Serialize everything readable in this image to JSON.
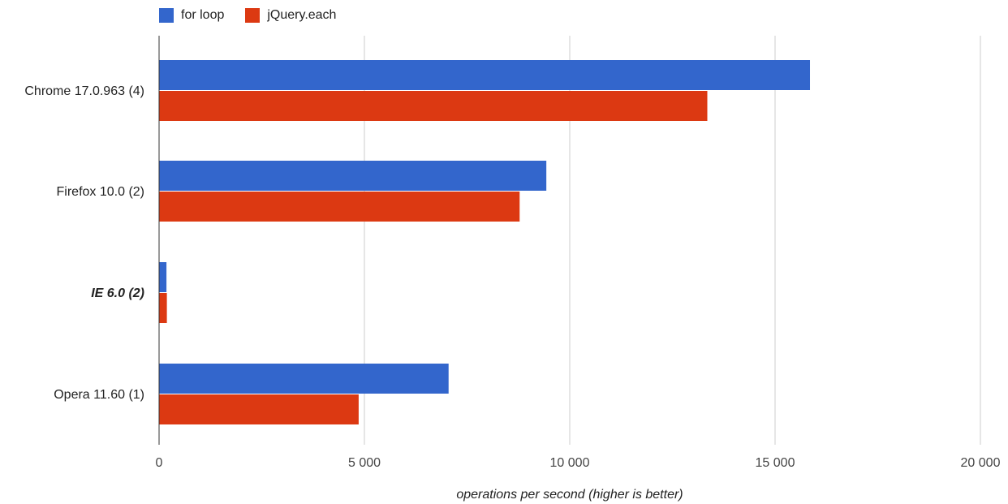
{
  "chart_data": {
    "type": "bar",
    "orientation": "horizontal",
    "categories": [
      "Chrome 17.0.963 (4)",
      "Firefox 10.0 (2)",
      "IE 6.0 (2)",
      "Opera 11.60 (1)"
    ],
    "emphasized_category": "IE 6.0 (2)",
    "series": [
      {
        "name": "for loop",
        "color": "#3366cc",
        "values": [
          15850,
          9430,
          180,
          7050
        ]
      },
      {
        "name": "jQuery.each",
        "color": "#dc3912",
        "values": [
          13350,
          8780,
          190,
          4860
        ]
      }
    ],
    "xlabel": "operations per second (higher is better)",
    "xlim": [
      0,
      20000
    ],
    "xticks": [
      0,
      5000,
      10000,
      15000,
      20000
    ],
    "xtick_labels": [
      "0",
      "5 000",
      "10 000",
      "15 000",
      "20 000"
    ],
    "grid": true,
    "legend_position": "top-left"
  }
}
